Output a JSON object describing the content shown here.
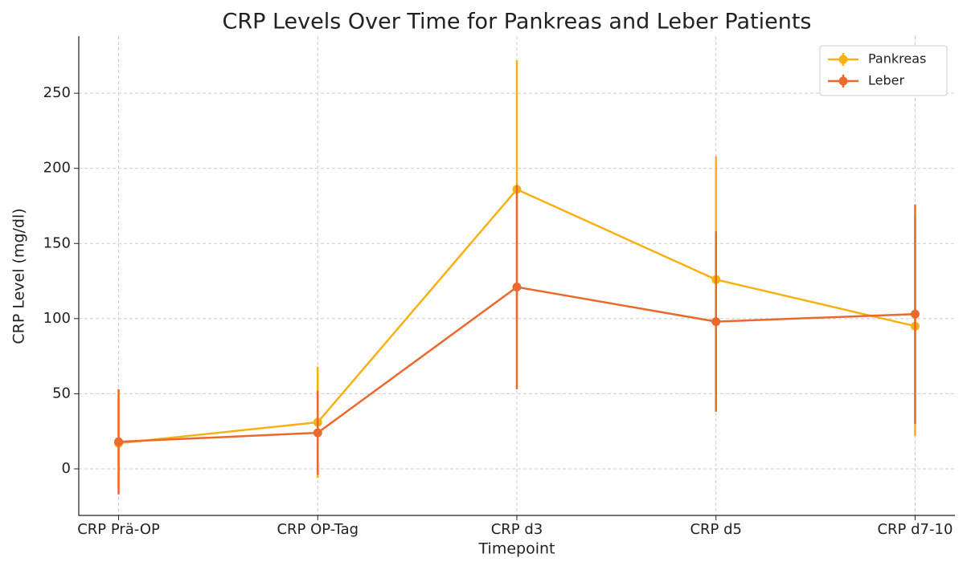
{
  "chart_data": {
    "type": "line",
    "title": "CRP Levels Over Time for Pankreas and Leber Patients",
    "xlabel": "Timepoint",
    "ylabel": "CRP Level (mg/dl)",
    "categories": [
      "CRP Prä-OP",
      "CRP OP-Tag",
      "CRP d3",
      "CRP d5",
      "CRP d7-10"
    ],
    "series": [
      {
        "name": "Pankreas",
        "color": "#f9b015",
        "values": [
          17,
          31,
          186,
          126,
          95
        ],
        "errors": [
          30,
          37,
          86,
          82,
          73
        ]
      },
      {
        "name": "Leber",
        "color": "#ea6a2e",
        "values": [
          18,
          24,
          121,
          98,
          103
        ],
        "errors": [
          35,
          28,
          68,
          60,
          73
        ]
      }
    ],
    "ylim": [
      -31,
      288
    ],
    "yticks": [
      0,
      50,
      100,
      150,
      200,
      250
    ],
    "grid": true,
    "legend": "upper right"
  }
}
